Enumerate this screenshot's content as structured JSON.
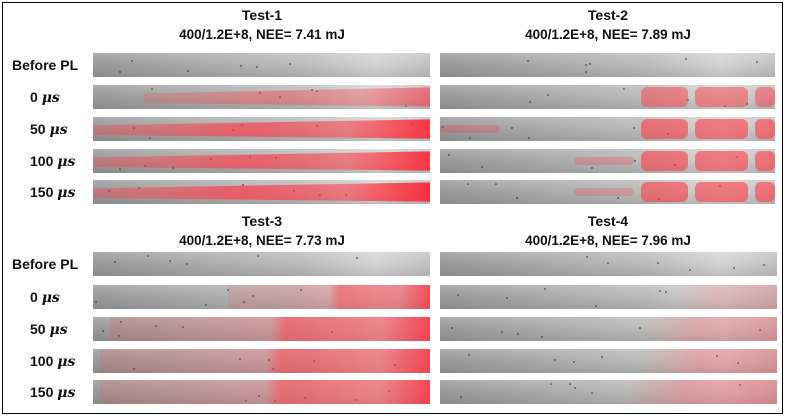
{
  "panels": [
    {
      "id": "test-1",
      "title": "Test-1",
      "subtitle": "400/1.2E+8, NEE= 7.41 mJ",
      "rows": [
        {
          "label": "Before PL",
          "mu": "",
          "red_level": 0.0,
          "front": 0.0,
          "spread": "none"
        },
        {
          "label": "0 ",
          "mu": "μs",
          "red_level": 0.55,
          "front": 0.15,
          "spread": "full"
        },
        {
          "label": "50 ",
          "mu": "μs",
          "red_level": 0.9,
          "front": 0.0,
          "spread": "full"
        },
        {
          "label": "100 ",
          "mu": "μs",
          "red_level": 0.9,
          "front": 0.0,
          "spread": "full"
        },
        {
          "label": "150 ",
          "mu": "μs",
          "red_level": 0.95,
          "front": 0.0,
          "spread": "full"
        }
      ]
    },
    {
      "id": "test-2",
      "title": "Test-2",
      "subtitle": "400/1.2E+8, NEE= 7.89 mJ",
      "rows": [
        {
          "label": "Before PL",
          "mu": "",
          "red_level": 0.0,
          "front": 0.0,
          "spread": "none"
        },
        {
          "label": "0 ",
          "mu": "μs",
          "red_level": 0.7,
          "front": 0.6,
          "spread": "blobs"
        },
        {
          "label": "50 ",
          "mu": "μs",
          "red_level": 0.85,
          "front": 0.0,
          "spread": "blobs"
        },
        {
          "label": "100 ",
          "mu": "μs",
          "red_level": 0.85,
          "front": 0.4,
          "spread": "blobs"
        },
        {
          "label": "150 ",
          "mu": "μs",
          "red_level": 0.85,
          "front": 0.4,
          "spread": "blobs"
        }
      ]
    },
    {
      "id": "test-3",
      "title": "Test-3",
      "subtitle": "400/1.2E+8, NEE= 7.73 mJ",
      "rows": [
        {
          "label": "Before PL",
          "mu": "",
          "red_level": 0.0,
          "front": 0.0,
          "spread": "none"
        },
        {
          "label": "0 ",
          "mu": "μs",
          "red_level": 0.75,
          "front": 0.4,
          "spread": "mid"
        },
        {
          "label": "50 ",
          "mu": "μs",
          "red_level": 0.8,
          "front": 0.05,
          "spread": "mid"
        },
        {
          "label": "100 ",
          "mu": "μs",
          "red_level": 0.8,
          "front": 0.02,
          "spread": "mid"
        },
        {
          "label": "150 ",
          "mu": "μs",
          "red_level": 0.8,
          "front": 0.02,
          "spread": "mid"
        }
      ]
    },
    {
      "id": "test-4",
      "title": "Test-4",
      "subtitle": "400/1.2E+8, NEE= 7.96 mJ",
      "rows": [
        {
          "label": "Before PL",
          "mu": "",
          "red_level": 0.0,
          "front": 0.0,
          "spread": "none"
        },
        {
          "label": "0 ",
          "mu": "μs",
          "red_level": 0.35,
          "front": 0.7,
          "spread": "faint"
        },
        {
          "label": "50 ",
          "mu": "μs",
          "red_level": 0.5,
          "front": 0.6,
          "spread": "faint"
        },
        {
          "label": "100 ",
          "mu": "μs",
          "red_level": 0.55,
          "front": 0.6,
          "spread": "faint"
        },
        {
          "label": "150 ",
          "mu": "μs",
          "red_level": 0.6,
          "front": 0.55,
          "spread": "faint"
        }
      ]
    }
  ],
  "colors": {
    "overlay": "#ff3c46",
    "strip_dark": "#999999",
    "strip_light": "#d4d4d4"
  }
}
